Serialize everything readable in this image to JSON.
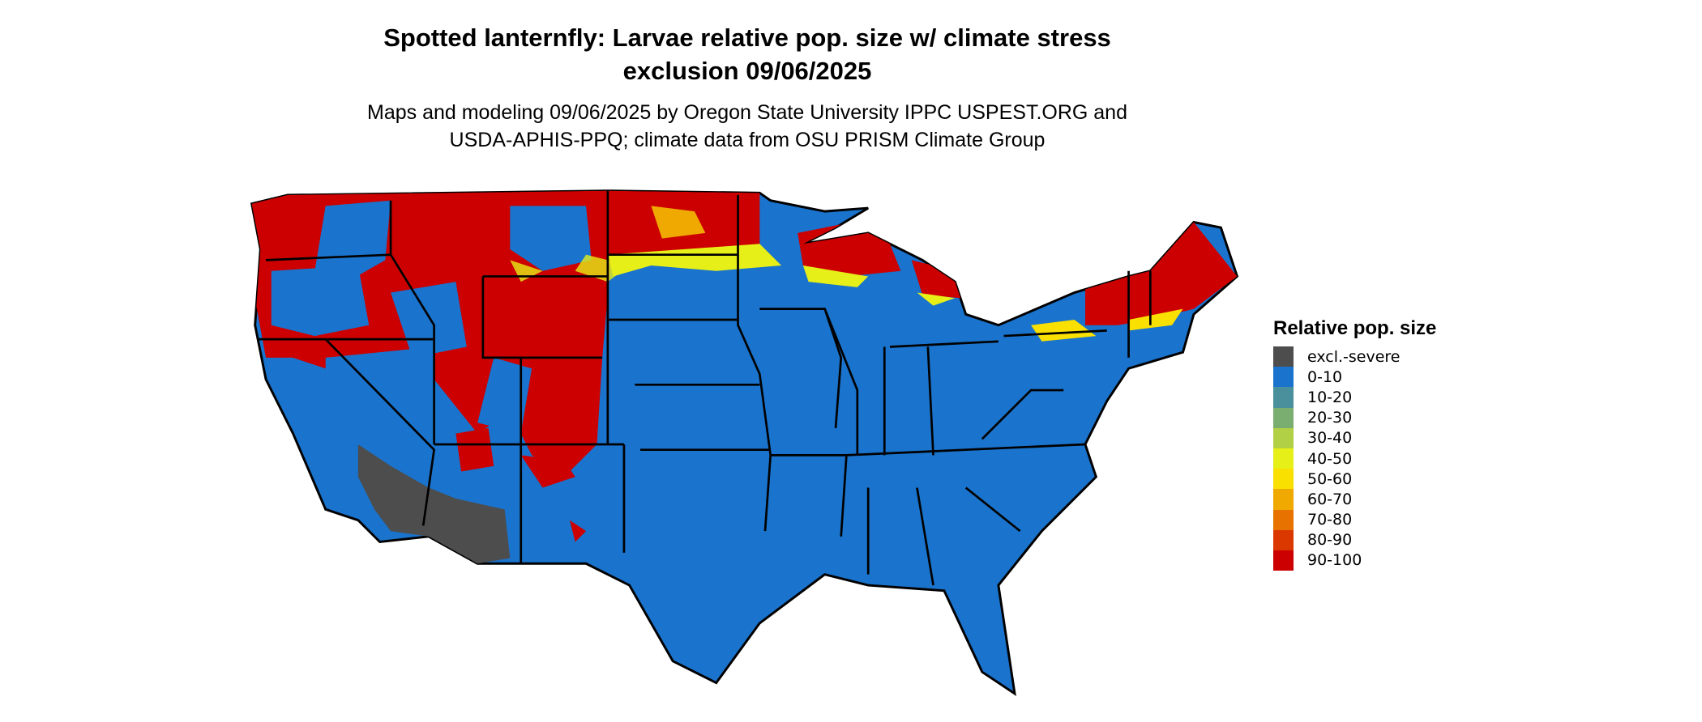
{
  "title": {
    "line1": "Spotted lanternfly: Larvae relative pop. size w/ climate stress",
    "line2": "exclusion 09/06/2025"
  },
  "subtitle": {
    "line1": "Maps and modeling 09/06/2025 by Oregon State University IPPC USPEST.ORG and",
    "line2": "USDA-APHIS-PPQ; climate data from OSU PRISM Climate Group"
  },
  "map": {
    "region": "Contiguous United States",
    "base_color": "#1a73cc",
    "border_color": "#000000"
  },
  "legend": {
    "title": "Relative pop. size",
    "items": [
      {
        "label": "excl.-severe",
        "color": "#4d4d4d"
      },
      {
        "label": "0-10",
        "color": "#1a73cc"
      },
      {
        "label": "10-20",
        "color": "#4a8f9c"
      },
      {
        "label": "20-30",
        "color": "#7aae70"
      },
      {
        "label": "30-40",
        "color": "#b2d045"
      },
      {
        "label": "40-50",
        "color": "#e6ef17"
      },
      {
        "label": "50-60",
        "color": "#f9e000"
      },
      {
        "label": "60-70",
        "color": "#efa900"
      },
      {
        "label": "70-80",
        "color": "#e77200"
      },
      {
        "label": "80-90",
        "color": "#db3800"
      },
      {
        "label": "90-100",
        "color": "#cc0000"
      }
    ]
  }
}
